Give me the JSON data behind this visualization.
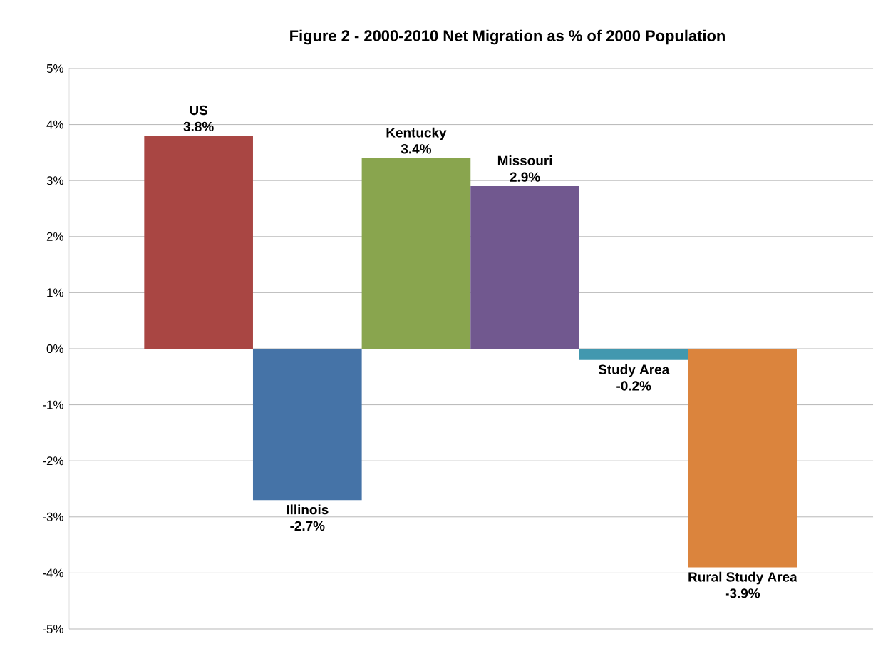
{
  "chart_data": {
    "type": "bar",
    "title": "Figure 2 - 2000-2010 Net Migration as % of 2000 Population",
    "categories": [
      "US",
      "Illinois",
      "Kentucky",
      "Missouri",
      "Study Area",
      "Rural Study Area"
    ],
    "values": [
      3.8,
      -2.7,
      3.4,
      2.9,
      -0.2,
      -3.9
    ],
    "value_labels": [
      "3.8%",
      "-2.7%",
      "3.4%",
      "2.9%",
      "-0.2%",
      "-3.9%"
    ],
    "colors": [
      "#a94643",
      "#4573a7",
      "#89a54e",
      "#71588f",
      "#4298af",
      "#db843d"
    ],
    "ylim": [
      -5,
      5
    ],
    "yticks": [
      {
        "value": -5,
        "label": "-5%"
      },
      {
        "value": -4,
        "label": "-4%"
      },
      {
        "value": -3,
        "label": "-3%"
      },
      {
        "value": -2,
        "label": "-2%"
      },
      {
        "value": -1,
        "label": "-1%"
      },
      {
        "value": 0,
        "label": "0%"
      },
      {
        "value": 1,
        "label": "1%"
      },
      {
        "value": 2,
        "label": "2%"
      },
      {
        "value": 3,
        "label": "3%"
      },
      {
        "value": 4,
        "label": "4%"
      },
      {
        "value": 5,
        "label": "5%"
      }
    ],
    "grid": "y",
    "tick_labels": "y"
  }
}
